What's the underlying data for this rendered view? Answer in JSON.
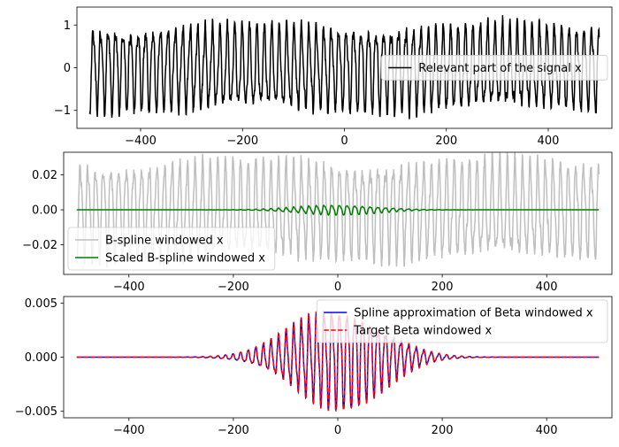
{
  "chart_data": [
    {
      "type": "line",
      "title": "",
      "xlabel": "",
      "ylabel": "",
      "xlim": [
        -525,
        525
      ],
      "ylim": [
        -1.42,
        1.42
      ],
      "xticks": [
        -400,
        -200,
        0,
        200,
        400
      ],
      "xtick_labels": [
        "−400",
        "−200",
        "0",
        "200",
        "400"
      ],
      "yticks": [
        -1,
        0,
        1
      ],
      "ytick_labels": [
        "−1",
        "0",
        "1"
      ],
      "legend_position": "center-right",
      "series": [
        {
          "name": "Relevant part of the signal x",
          "color": "#000000",
          "style": "solid",
          "x": [
            -500,
            500
          ],
          "amplitude": 1.0,
          "period_samples": 14.6,
          "envelope": "constant"
        }
      ]
    },
    {
      "type": "line",
      "title": "",
      "xlabel": "",
      "ylabel": "",
      "xlim": [
        -525,
        525
      ],
      "ylim": [
        -0.037,
        0.033
      ],
      "xticks": [
        -400,
        -200,
        0,
        200,
        400
      ],
      "xtick_labels": [
        "−400",
        "−200",
        "0",
        "200",
        "400"
      ],
      "yticks": [
        -0.02,
        0.0,
        0.02
      ],
      "ytick_labels": [
        "−0.02",
        "0.00",
        "0.02"
      ],
      "legend_position": "lower-left",
      "series": [
        {
          "name": "B-spline windowed x",
          "color": "#bfbfbf",
          "style": "solid",
          "x": [
            -500,
            500
          ],
          "amplitude": 0.028,
          "period_samples": 14.6,
          "envelope": "constant"
        },
        {
          "name": "Scaled B-spline windowed x",
          "color": "#008000",
          "style": "solid",
          "x": [
            -500,
            500
          ],
          "amplitude": 0.003,
          "period_samples": 14.6,
          "envelope": "gaussian",
          "envelope_width": 75
        }
      ]
    },
    {
      "type": "line",
      "title": "",
      "xlabel": "",
      "ylabel": "",
      "xlim": [
        -525,
        525
      ],
      "ylim": [
        -0.0056,
        0.0056
      ],
      "xticks": [
        -400,
        -200,
        0,
        200,
        400
      ],
      "xtick_labels": [
        "−400",
        "−200",
        "0",
        "200",
        "400"
      ],
      "yticks": [
        -0.005,
        0.0,
        0.005
      ],
      "ytick_labels": [
        "−0.005",
        "0.000",
        "0.005"
      ],
      "legend_position": "upper-right",
      "series": [
        {
          "name": "Spline approximation of Beta windowed x",
          "color": "#0000ff",
          "style": "solid",
          "x": [
            -500,
            500
          ],
          "amplitude": 0.0048,
          "period_samples": 14.6,
          "envelope": "gaussian",
          "envelope_width": 85
        },
        {
          "name": "Target Beta windowed x",
          "color": "#ff0000",
          "style": "dashed",
          "x": [
            -500,
            500
          ],
          "amplitude": 0.0049,
          "period_samples": 14.6,
          "envelope": "gaussian",
          "envelope_width": 85
        }
      ]
    }
  ]
}
